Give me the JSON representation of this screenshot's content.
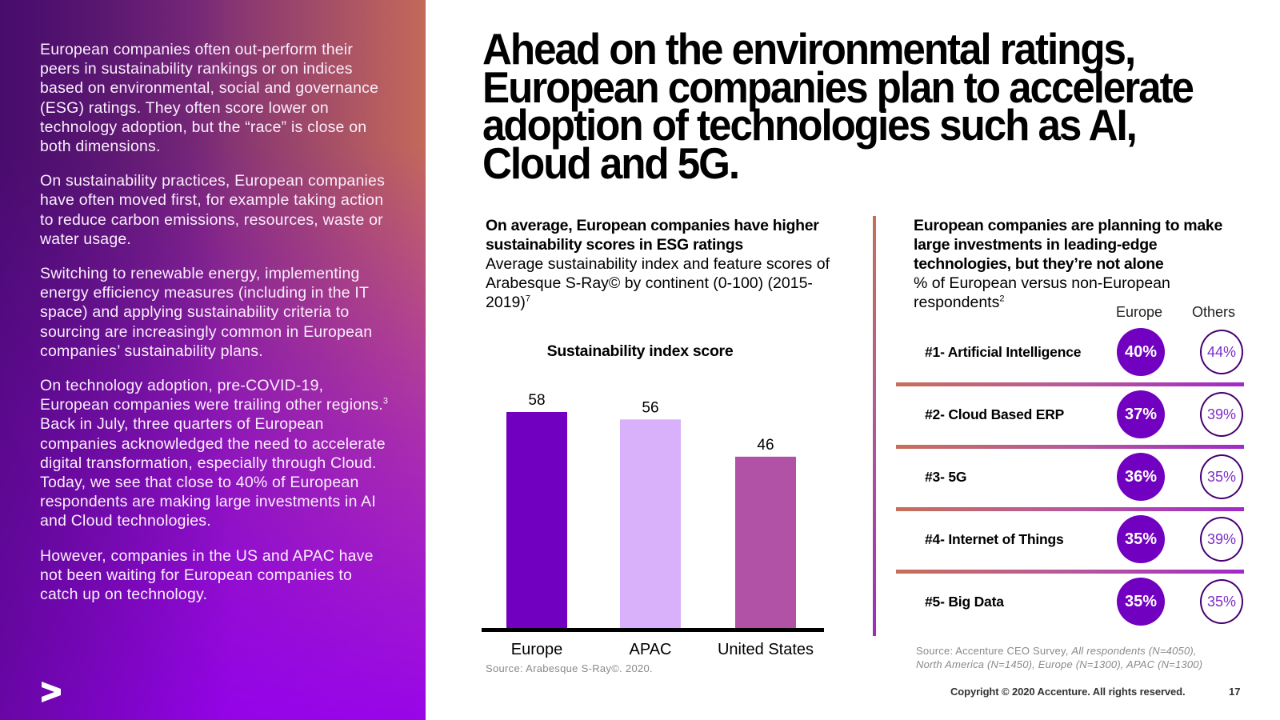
{
  "left_panel": {
    "paragraphs": [
      {
        "text": "European companies often out-perform their peers in sustainability rankings or on indices based on environmental, social and governance (ESG) ratings. They often score lower on technology adoption, but the “race” is close on both dimensions."
      },
      {
        "text": "On sustainability practices, European companies have often moved first, for example taking action to reduce carbon emissions, resources, waste or water usage."
      },
      {
        "text": "Switching to renewable energy, implementing energy efficiency measures (including in the IT space) and applying sustainability criteria to sourcing are increasingly common in European companies’ sustainability plans."
      },
      {
        "text_before": "On technology adoption, pre-COVID-19, European companies were trailing other regions.",
        "footnote": "3",
        "text_after": " Back in July, three quarters of European companies acknowledged the need to accelerate digital transformation, especially through Cloud. Today, we see that close to 40% of European respondents are making large investments in AI and Cloud technologies."
      },
      {
        "text": "However, companies in the US and APAC have not been waiting for European companies to catch up on technology."
      }
    ],
    "logo_icon": "accenture-greater-than-icon"
  },
  "title": "Ahead on the environmental ratings, European companies plan to accelerate adoption of technologies such as AI, Cloud and 5G.",
  "left_chart": {
    "heading_bold": "On average, European companies have higher sustainability scores in ESG ratings",
    "heading_regular": "Average sustainability index and feature scores of Arabesque S-Ray© by continent (0-100) (2015-2019)",
    "heading_footnote": "7",
    "source": "Source: Arabesque S-Ray©. 2020."
  },
  "chart_data": {
    "type": "bar",
    "title": "Sustainability index score",
    "categories": [
      "Europe",
      "APAC",
      "United States"
    ],
    "values": [
      58,
      56,
      46
    ],
    "colors": [
      "#7100c0",
      "#d9b0fa",
      "#b152a6"
    ],
    "xlabel": "",
    "ylabel": "",
    "ylim": [
      0,
      62
    ],
    "grid": false,
    "data_labels": true
  },
  "right_chart": {
    "heading_bold": "European companies are planning to make large investments in leading-edge technologies, but they’re not alone",
    "heading_regular": "% of European versus non-European respondents",
    "heading_footnote": "2",
    "col_europe": "Europe",
    "col_others": "Others",
    "rows": [
      {
        "label": "#1- Artificial Intelligence",
        "europe": "40%",
        "others": "44%"
      },
      {
        "label": "#2- Cloud Based ERP",
        "europe": "37%",
        "others": "39%"
      },
      {
        "label": "#3- 5G",
        "europe": "36%",
        "others": "35%"
      },
      {
        "label": "#4- Internet of Things",
        "europe": "35%",
        "others": "39%"
      },
      {
        "label": "#5- Big Data",
        "europe": "35%",
        "others": "35%"
      }
    ],
    "source_regular": "Source: Accenture CEO Survey, ",
    "source_italic_1": "All respondents (N=4050),",
    "source_italic_2": "North America (N=1450), Europe (N=1300), APAC (N=1300)"
  },
  "footer": {
    "copyright": "Copyright © 2020 Accenture. All rights reserved.",
    "page_number": "17"
  },
  "colors": {
    "accent_purple": "#7100c0",
    "dark_purple": "#460073",
    "others_text": "#7d2fc8"
  }
}
